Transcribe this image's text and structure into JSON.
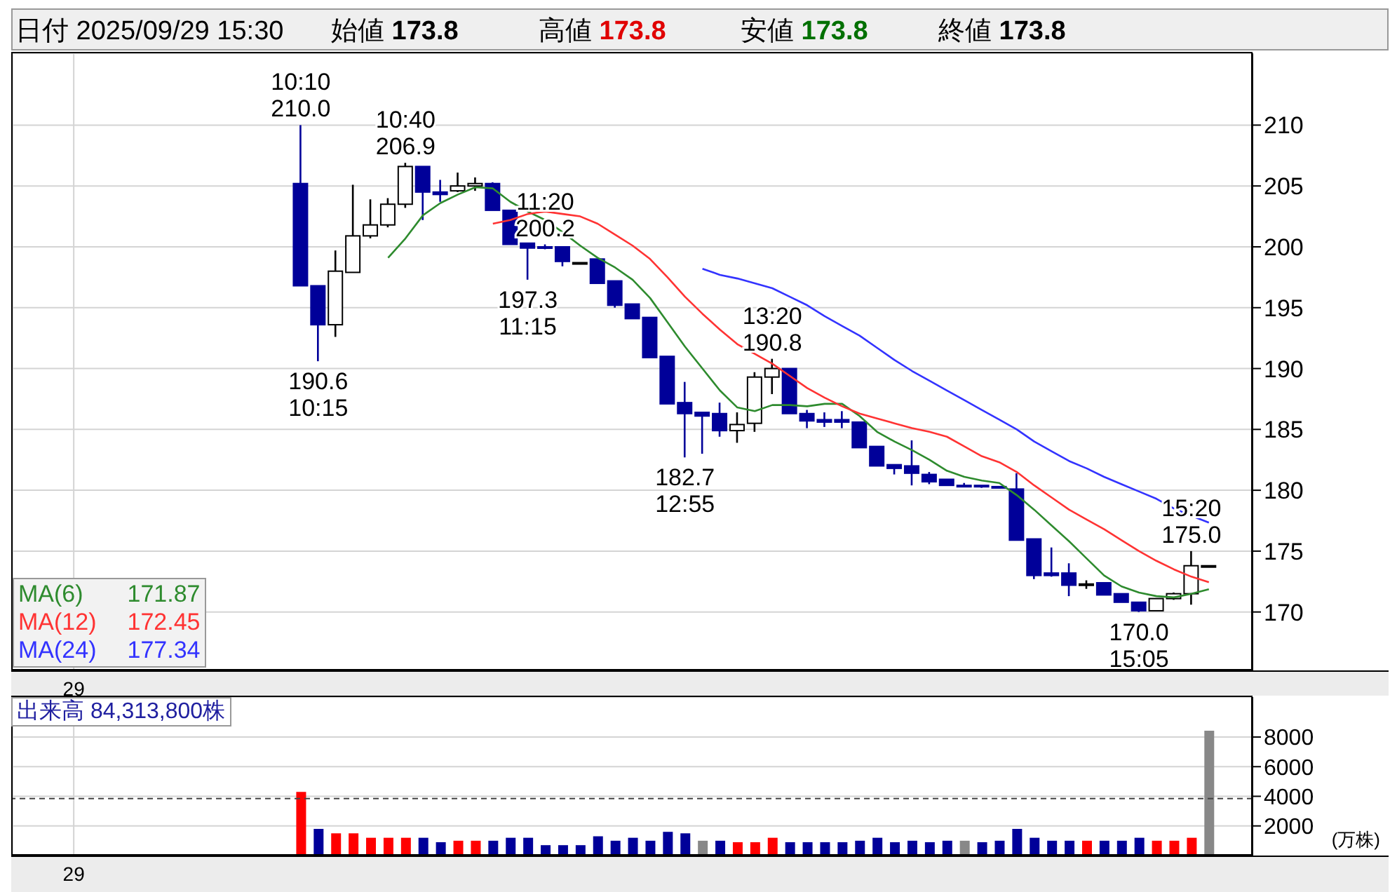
{
  "chart_data": [
    {
      "type": "candlestick",
      "annotations": [
        "日付 2025/09/29 15:30",
        "始値 173.8",
        "高値 173.8",
        "安値 173.8",
        "終値 173.8",
        "171.87",
        "172.45",
        "177.34",
        {
          "text": "10:10\n210.0",
          "y": 210.0
        },
        {
          "text": "190.6\n10:15",
          "y": 190.6
        },
        {
          "text": "10:40\n206.9",
          "y": 206.9
        },
        {
          "text": "11:20\n200.2",
          "y": 200.2
        },
        {
          "text": "197.3\n11:15",
          "y": 197.3
        },
        {
          "text": "182.7\n12:55",
          "y": 182.7
        },
        {
          "text": "13:20\n190.8",
          "y": 190.8
        },
        {
          "text": "170.0\n15:05",
          "y": 170.0
        },
        {
          "text": "15:20\n175.0",
          "y": 175.0
        }
      ],
      "categories": [
        null,
        null,
        null,
        "29",
        null,
        null,
        null,
        null,
        null,
        null,
        null,
        null,
        null,
        null,
        null,
        null,
        null,
        null,
        null,
        null,
        null,
        null,
        null,
        null,
        null,
        null,
        null,
        null,
        null,
        null,
        null,
        null,
        null,
        null,
        null,
        null,
        null,
        null,
        null,
        null,
        null,
        null,
        null,
        null,
        null,
        null,
        null,
        null,
        null,
        null,
        null,
        null,
        null,
        null,
        null,
        null,
        null,
        null,
        null,
        null,
        null,
        null,
        null,
        null,
        null,
        null,
        null,
        null,
        null,
        null,
        null
      ],
      "ohlc": [
        null,
        null,
        null,
        null,
        null,
        null,
        null,
        null,
        null,
        null,
        null,
        null,
        null,
        null,
        null,
        null,
        [
          205.2,
          210.0,
          196.8,
          196.8
        ],
        [
          196.8,
          196.8,
          190.6,
          193.6
        ],
        [
          193.6,
          199.7,
          192.6,
          198.0
        ],
        [
          197.9,
          205.1,
          197.9,
          200.9
        ],
        [
          200.9,
          203.9,
          200.7,
          201.8
        ],
        [
          201.8,
          204.0,
          201.6,
          203.5
        ],
        [
          203.5,
          206.9,
          203.2,
          206.6
        ],
        [
          206.6,
          206.6,
          202.2,
          204.5
        ],
        [
          204.5,
          205.5,
          203.7,
          204.3
        ],
        [
          204.6,
          206.1,
          204.5,
          205.0
        ],
        [
          205.0,
          205.7,
          204.6,
          205.2
        ],
        [
          205.2,
          205.3,
          203.0,
          203.0
        ],
        [
          203.0,
          203.0,
          200.2,
          200.2
        ],
        [
          200.3,
          200.3,
          197.3,
          199.9
        ],
        [
          200.0,
          200.2,
          199.8,
          199.9
        ],
        [
          200.0,
          200.0,
          198.4,
          198.8
        ],
        [
          198.7,
          198.7,
          198.7,
          198.7
        ],
        [
          199.0,
          199.0,
          197.0,
          197.0
        ],
        [
          197.2,
          197.2,
          195.0,
          195.2
        ],
        [
          195.3,
          195.3,
          194.1,
          194.1
        ],
        [
          194.2,
          194.2,
          190.9,
          190.9
        ],
        [
          191.0,
          191.0,
          187.1,
          187.1
        ],
        [
          187.2,
          188.9,
          182.7,
          186.3
        ],
        [
          186.4,
          186.4,
          183.0,
          186.1
        ],
        [
          186.3,
          187.2,
          184.4,
          184.9
        ],
        [
          184.9,
          186.4,
          183.9,
          185.4
        ],
        [
          185.5,
          189.7,
          184.8,
          189.3
        ],
        [
          189.3,
          190.8,
          187.9,
          190.0
        ],
        [
          190.0,
          190.0,
          186.3,
          186.3
        ],
        [
          186.3,
          186.6,
          185.1,
          185.7
        ],
        [
          185.8,
          186.4,
          185.2,
          185.6
        ],
        [
          185.8,
          186.5,
          185.1,
          185.6
        ],
        [
          185.6,
          185.6,
          183.5,
          183.5
        ],
        [
          183.6,
          183.6,
          182.0,
          182.0
        ],
        [
          182.1,
          182.1,
          181.3,
          181.8
        ],
        [
          182.0,
          184.1,
          180.4,
          181.4
        ],
        [
          181.3,
          181.5,
          180.5,
          180.7
        ],
        [
          180.9,
          180.9,
          180.4,
          180.4
        ],
        [
          180.4,
          180.6,
          180.3,
          180.3
        ],
        [
          180.4,
          180.4,
          180.2,
          180.3
        ],
        [
          180.3,
          180.3,
          180.2,
          180.2
        ],
        [
          180.1,
          181.4,
          175.9,
          175.9
        ],
        [
          176.0,
          176.0,
          172.7,
          173.0
        ],
        [
          173.2,
          175.3,
          172.9,
          173.0
        ],
        [
          173.2,
          174.0,
          171.3,
          172.2
        ],
        [
          172.3,
          172.6,
          171.9,
          172.3
        ],
        [
          172.4,
          172.4,
          171.4,
          171.4
        ],
        [
          171.5,
          171.5,
          170.8,
          170.8
        ],
        [
          170.8,
          170.8,
          170.0,
          170.1
        ],
        [
          170.1,
          171.1,
          170.1,
          171.1
        ],
        [
          171.1,
          171.6,
          171.0,
          171.5
        ],
        [
          171.5,
          175.0,
          170.6,
          173.8
        ],
        [
          173.8,
          173.8,
          173.8,
          173.8
        ],
        null,
        null
      ],
      "colors": [
        null,
        null,
        null,
        null,
        null,
        null,
        null,
        null,
        null,
        null,
        null,
        null,
        null,
        null,
        null,
        null,
        "#000099",
        "#000099",
        "#ffffff",
        "#ffffff",
        "#ffffff",
        "#ffffff",
        "#ffffff",
        "#000099",
        "#000099",
        "#ffffff",
        "#ffffff",
        "#000099",
        "#000099",
        "#000099",
        "#000099",
        "#000099",
        "#000000",
        "#000099",
        "#000099",
        "#000099",
        "#000099",
        "#000099",
        "#000099",
        "#000099",
        "#000099",
        "#ffffff",
        "#ffffff",
        "#ffffff",
        "#000099",
        "#000099",
        "#000099",
        "#000099",
        "#000099",
        "#000099",
        "#000099",
        "#000099",
        "#000099",
        "#000099",
        "#000099",
        "#000099",
        "#000099",
        "#000099",
        "#000099",
        "#000099",
        "#000099",
        "#000000",
        "#000099",
        "#000099",
        "#000099",
        "#ffffff",
        "#ffffff",
        "#ffffff",
        "#000000",
        null,
        null
      ],
      "series": [
        {
          "name": "MA(6)",
          "type": "line",
          "color": "#2e8b2e",
          "values": [
            null,
            null,
            null,
            null,
            null,
            null,
            null,
            null,
            null,
            null,
            null,
            null,
            null,
            null,
            null,
            null,
            null,
            null,
            null,
            null,
            null,
            199.1,
            200.7,
            202.6,
            203.6,
            204.3,
            204.9,
            204.8,
            203.7,
            202.9,
            202.2,
            201.2,
            200.1,
            199.1,
            198.3,
            197.3,
            195.8,
            193.8,
            191.8,
            190.0,
            188.2,
            186.8,
            186.5,
            187.0,
            187.0,
            186.9,
            187.1,
            187.1,
            186.1,
            184.8,
            184.0,
            183.3,
            182.5,
            181.6,
            181.1,
            180.8,
            180.6,
            179.6,
            178.4,
            177.1,
            175.8,
            174.4,
            173.0,
            172.1,
            171.6,
            171.3,
            171.2,
            171.5,
            171.87,
            null,
            null
          ]
        },
        {
          "name": "MA(12)",
          "type": "line",
          "color": "#ff3333",
          "values": [
            null,
            null,
            null,
            null,
            null,
            null,
            null,
            null,
            null,
            null,
            null,
            null,
            null,
            null,
            null,
            null,
            null,
            null,
            null,
            null,
            null,
            null,
            null,
            null,
            null,
            null,
            null,
            201.9,
            202.2,
            202.7,
            202.9,
            202.7,
            202.5,
            201.9,
            201.0,
            200.1,
            199.0,
            197.5,
            195.9,
            194.5,
            193.2,
            192.0,
            191.2,
            190.4,
            189.4,
            188.4,
            187.6,
            186.9,
            186.3,
            185.9,
            185.5,
            185.1,
            184.8,
            184.4,
            183.6,
            182.8,
            182.3,
            181.5,
            180.4,
            179.4,
            178.4,
            177.6,
            176.8,
            175.9,
            175.0,
            174.2,
            173.5,
            172.9,
            172.45,
            null,
            null
          ]
        },
        {
          "name": "MA(24)",
          "type": "line",
          "color": "#3333ff",
          "values": [
            null,
            null,
            null,
            null,
            null,
            null,
            null,
            null,
            null,
            null,
            null,
            null,
            null,
            null,
            null,
            null,
            null,
            null,
            null,
            null,
            null,
            null,
            null,
            null,
            null,
            null,
            null,
            null,
            null,
            null,
            null,
            null,
            null,
            null,
            null,
            null,
            null,
            null,
            null,
            198.2,
            197.7,
            197.4,
            197.0,
            196.6,
            195.9,
            195.2,
            194.3,
            193.5,
            192.7,
            191.7,
            190.7,
            189.8,
            189.0,
            188.2,
            187.4,
            186.6,
            185.8,
            185.0,
            184.0,
            183.2,
            182.4,
            181.8,
            181.1,
            180.5,
            179.9,
            179.3,
            178.5,
            177.9,
            177.34,
            null,
            null
          ]
        }
      ],
      "ylim": [
        165.2,
        215.9
      ],
      "yticks": [
        170,
        175,
        180,
        185,
        190,
        195,
        200,
        205,
        210
      ],
      "grid": true,
      "legend": "bottom left"
    },
    {
      "type": "bar",
      "title": "出来高 84,313,800株",
      "ylabel": "(万株)",
      "categories": [
        null,
        null,
        null,
        "29",
        null,
        null,
        null,
        null,
        null,
        null,
        null,
        null,
        null,
        null,
        null,
        null,
        null,
        null,
        null,
        null,
        null,
        null,
        null,
        null,
        null,
        null,
        null,
        null,
        null,
        null,
        null,
        null,
        null,
        null,
        null,
        null,
        null,
        null,
        null,
        null,
        null,
        null,
        null,
        null,
        null,
        null,
        null,
        null,
        null,
        null,
        null,
        null,
        null,
        null,
        null,
        null,
        null,
        null,
        null,
        null,
        null,
        null,
        null,
        null,
        null,
        null,
        null,
        null,
        null,
        null,
        null
      ],
      "values": [
        null,
        null,
        null,
        null,
        null,
        null,
        null,
        null,
        null,
        null,
        null,
        null,
        null,
        null,
        null,
        null,
        4300,
        1800,
        1500,
        1500,
        1200,
        1200,
        1200,
        1200,
        900,
        1000,
        1000,
        1000,
        1200,
        1200,
        700,
        700,
        700,
        1300,
        1000,
        1200,
        1000,
        1600,
        1500,
        1000,
        1000,
        900,
        900,
        1200,
        900,
        900,
        900,
        900,
        1000,
        1200,
        900,
        1000,
        900,
        1000,
        1000,
        900,
        1000,
        1800,
        1200,
        1000,
        1000,
        1000,
        1000,
        1000,
        1200,
        1000,
        1000,
        1200,
        8431.38,
        null,
        null
      ],
      "colors": [
        null,
        null,
        null,
        null,
        null,
        null,
        null,
        null,
        null,
        null,
        null,
        null,
        null,
        null,
        null,
        null,
        "#ff0000",
        "#000099",
        "#ff0000",
        "#ff0000",
        "#ff0000",
        "#ff0000",
        "#ff0000",
        "#000099",
        "#000099",
        "#ff0000",
        "#ff0000",
        "#000099",
        "#000099",
        "#000099",
        "#000099",
        "#000099",
        "#000099",
        "#000099",
        "#000099",
        "#000099",
        "#000099",
        "#000099",
        "#000099",
        "#888888",
        "#000099",
        "#ff0000",
        "#ff0000",
        "#ff0000",
        "#000099",
        "#000099",
        "#000099",
        "#000099",
        "#000099",
        "#000099",
        "#000099",
        "#000099",
        "#000099",
        "#000099",
        "#888888",
        "#000099",
        "#000099",
        "#000099",
        "#000099",
        "#000099",
        "#000099",
        "#ff0000",
        "#000099",
        "#000099",
        "#000099",
        "#ff0000",
        "#ff0000",
        "#ff0000",
        "#888888",
        null,
        null
      ],
      "ylim": [
        0,
        10700
      ],
      "yticks": [
        2000,
        4000,
        6000,
        8000
      ],
      "grid": true,
      "ref_lines": [
        {
          "axis": "y",
          "value": 3850,
          "color": "#444444",
          "line_style": "dashed"
        }
      ]
    }
  ]
}
